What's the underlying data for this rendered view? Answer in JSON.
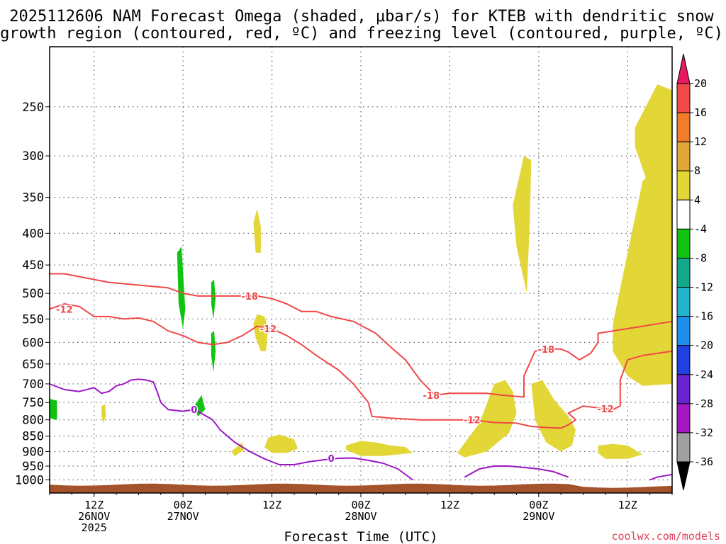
{
  "title": {
    "line1": "2025112606 NAM Forecast Omega (shaded, μbar/s) for KTEB with dendritic snow",
    "line2": "growth region (contoured, red, ºC) and freezing level (contoured, purple, ºC)"
  },
  "credit": "coolwx.com/models",
  "colors": {
    "positive_omega": "#e3d637",
    "negative_omega": "#12c412",
    "dendritic_contour": "#f04848",
    "freezing_contour": "#9a18c4",
    "terrain": "#a5522b",
    "grid": "#666666"
  },
  "chart_data": {
    "type": "heatmap",
    "title": "2025112606 NAM Forecast Omega (shaded, μbar/s) for KTEB with dendritic snow growth region (contoured, red, ºC) and freezing level (contoured, purple, ºC)",
    "xlabel": "Forecast Time (UTC)",
    "ylabel": "",
    "x_range_hours": [
      0,
      84
    ],
    "y_axis": {
      "scale": "log-pressure",
      "ticks": [
        250,
        300,
        350,
        400,
        450,
        500,
        550,
        600,
        650,
        700,
        750,
        800,
        850,
        900,
        950,
        1000
      ],
      "range": [
        1050,
        200
      ]
    },
    "x_ticks": [
      {
        "hour": 6,
        "l1": "12Z",
        "l2": "26NOV",
        "l3": "2025"
      },
      {
        "hour": 18,
        "l1": "00Z",
        "l2": "27NOV",
        "l3": ""
      },
      {
        "hour": 30,
        "l1": "12Z",
        "l2": "",
        "l3": ""
      },
      {
        "hour": 42,
        "l1": "00Z",
        "l2": "28NOV",
        "l3": ""
      },
      {
        "hour": 54,
        "l1": "12Z",
        "l2": "",
        "l3": ""
      },
      {
        "hour": 66,
        "l1": "00Z",
        "l2": "29NOV",
        "l3": ""
      },
      {
        "hour": 78,
        "l1": "12Z",
        "l2": "",
        "l3": ""
      }
    ],
    "grid": true,
    "colorbar": {
      "ticks": [
        "20",
        "16",
        "12",
        "8",
        "4",
        "-4",
        "-8",
        "-12",
        "-16",
        "-20",
        "-24",
        "-28",
        "-32",
        "-36"
      ],
      "colors": [
        "#e8195f",
        "#f24a4a",
        "#f07c2c",
        "#e3a63a",
        "#e3d637",
        "#ffffff",
        "#12c412",
        "#12a88a",
        "#22b4cc",
        "#1e8ee8",
        "#2040e0",
        "#6a22d0",
        "#a418c4",
        "#a0a0a0",
        "#000000"
      ]
    },
    "shaded_regions": [
      {
        "sign": "positive",
        "points": [
          [
            79,
            270
          ],
          [
            82,
            230
          ],
          [
            84,
            235
          ],
          [
            84,
            345
          ],
          [
            82,
            345
          ],
          [
            81,
            340
          ],
          [
            79,
            290
          ]
        ]
      },
      {
        "sign": "positive",
        "points": [
          [
            76,
            560
          ],
          [
            78,
            430
          ],
          [
            80,
            330
          ],
          [
            84,
            290
          ],
          [
            84,
            700
          ],
          [
            80,
            705
          ],
          [
            78,
            680
          ],
          [
            76,
            620
          ]
        ]
      },
      {
        "sign": "positive",
        "points": [
          [
            62.5,
            360
          ],
          [
            64,
            300
          ],
          [
            65,
            305
          ],
          [
            64.8,
            380
          ],
          [
            64.4,
            500
          ],
          [
            63,
            420
          ]
        ]
      },
      {
        "sign": "positive",
        "points": [
          [
            55,
            905
          ],
          [
            58,
            810
          ],
          [
            60,
            700
          ],
          [
            61.5,
            690
          ],
          [
            62.5,
            720
          ],
          [
            63,
            780
          ],
          [
            62,
            840
          ],
          [
            59,
            900
          ],
          [
            56,
            920
          ]
        ]
      },
      {
        "sign": "positive",
        "points": [
          [
            65,
            700
          ],
          [
            66.5,
            690
          ],
          [
            68,
            740
          ],
          [
            70,
            790
          ],
          [
            71,
            830
          ],
          [
            70.5,
            880
          ],
          [
            69,
            900
          ],
          [
            67,
            870
          ],
          [
            65.5,
            800
          ]
        ]
      },
      {
        "sign": "positive",
        "points": [
          [
            74,
            880
          ],
          [
            76,
            875
          ],
          [
            78,
            880
          ],
          [
            80,
            910
          ],
          [
            78,
            925
          ],
          [
            75,
            925
          ],
          [
            74,
            905
          ]
        ]
      },
      {
        "sign": "positive",
        "points": [
          [
            40,
            880
          ],
          [
            42,
            865
          ],
          [
            44,
            870
          ],
          [
            46,
            880
          ],
          [
            48,
            885
          ],
          [
            49,
            905
          ],
          [
            45,
            915
          ],
          [
            42,
            915
          ],
          [
            40,
            895
          ]
        ]
      },
      {
        "sign": "positive",
        "points": [
          [
            29.5,
            855
          ],
          [
            31,
            845
          ],
          [
            33,
            860
          ],
          [
            33.5,
            890
          ],
          [
            32,
            905
          ],
          [
            30,
            905
          ],
          [
            29,
            885
          ]
        ]
      },
      {
        "sign": "positive",
        "points": [
          [
            24.5,
            900
          ],
          [
            26,
            870
          ],
          [
            26.2,
            895
          ],
          [
            25,
            915
          ]
        ]
      },
      {
        "sign": "positive",
        "points": [
          [
            27.5,
            560
          ],
          [
            28,
            540
          ],
          [
            29,
            545
          ],
          [
            29.5,
            570
          ],
          [
            29.2,
            620
          ],
          [
            28.5,
            620
          ],
          [
            27.8,
            590
          ]
        ]
      },
      {
        "sign": "positive",
        "points": [
          [
            27.5,
            385
          ],
          [
            28,
            365
          ],
          [
            28.5,
            390
          ],
          [
            28.5,
            430
          ],
          [
            27.8,
            430
          ]
        ]
      },
      {
        "sign": "positive",
        "points": [
          [
            7,
            760
          ],
          [
            7.5,
            755
          ],
          [
            7.6,
            790
          ],
          [
            7.2,
            810
          ],
          [
            7,
            790
          ]
        ]
      },
      {
        "sign": "negative",
        "points": [
          [
            17.2,
            430
          ],
          [
            17.8,
            420
          ],
          [
            18,
            460
          ],
          [
            18.3,
            530
          ],
          [
            18,
            570
          ],
          [
            17.4,
            520
          ]
        ]
      },
      {
        "sign": "negative",
        "points": [
          [
            21.8,
            480
          ],
          [
            22.2,
            475
          ],
          [
            22.4,
            510
          ],
          [
            22.1,
            550
          ],
          [
            21.8,
            520
          ]
        ]
      },
      {
        "sign": "negative",
        "points": [
          [
            21.8,
            580
          ],
          [
            22.2,
            575
          ],
          [
            22.4,
            620
          ],
          [
            22.1,
            670
          ],
          [
            21.8,
            630
          ]
        ]
      },
      {
        "sign": "negative",
        "points": [
          [
            19.5,
            760
          ],
          [
            20.5,
            730
          ],
          [
            21,
            770
          ],
          [
            20,
            790
          ]
        ]
      },
      {
        "sign": "negative",
        "points": [
          [
            0,
            740
          ],
          [
            1,
            745
          ],
          [
            1,
            800
          ],
          [
            0,
            795
          ]
        ]
      }
    ],
    "contours": [
      {
        "kind": "dendritic",
        "value": "-12",
        "label_at": [
          2,
          530
        ],
        "points": [
          [
            0,
            530
          ],
          [
            2,
            520
          ],
          [
            4,
            525
          ],
          [
            6,
            545
          ],
          [
            8,
            545
          ],
          [
            10,
            550
          ],
          [
            12,
            548
          ],
          [
            14,
            555
          ],
          [
            16,
            575
          ],
          [
            18,
            585
          ],
          [
            20,
            600
          ],
          [
            22,
            605
          ],
          [
            24,
            600
          ],
          [
            26,
            585
          ],
          [
            28,
            565
          ],
          [
            30,
            570
          ],
          [
            32,
            585
          ],
          [
            34,
            605
          ],
          [
            36,
            630
          ],
          [
            39,
            665
          ],
          [
            41,
            700
          ],
          [
            43,
            750
          ],
          [
            43.5,
            790
          ],
          [
            46,
            795
          ],
          [
            50,
            800
          ],
          [
            54,
            800
          ],
          [
            57,
            800
          ],
          [
            60,
            808
          ],
          [
            63,
            810
          ],
          [
            65,
            820
          ],
          [
            67,
            823
          ],
          [
            69,
            825
          ],
          [
            70,
            815
          ],
          [
            71,
            800
          ],
          [
            70,
            780
          ],
          [
            72,
            760
          ],
          [
            74,
            765
          ],
          [
            76,
            770
          ],
          [
            77,
            760
          ],
          [
            77,
            690
          ],
          [
            78,
            640
          ],
          [
            80,
            630
          ],
          [
            82,
            625
          ],
          [
            84,
            620
          ]
        ]
      },
      {
        "kind": "dendritic",
        "value": "-18",
        "label_at": [
          27,
          505
        ],
        "points": [
          [
            0,
            465
          ],
          [
            2,
            465
          ],
          [
            4,
            470
          ],
          [
            6,
            475
          ],
          [
            8,
            480
          ],
          [
            12,
            485
          ],
          [
            16,
            490
          ],
          [
            18,
            500
          ],
          [
            20,
            505
          ],
          [
            24,
            505
          ],
          [
            28,
            505
          ],
          [
            30,
            510
          ],
          [
            32,
            520
          ],
          [
            34,
            535
          ],
          [
            36,
            535
          ],
          [
            38,
            545
          ],
          [
            41,
            555
          ],
          [
            44,
            580
          ],
          [
            46,
            610
          ],
          [
            48,
            640
          ],
          [
            50,
            690
          ],
          [
            52,
            730
          ],
          [
            54,
            725
          ],
          [
            57,
            725
          ],
          [
            59,
            725
          ],
          [
            61,
            730
          ],
          [
            64,
            735
          ],
          [
            64,
            680
          ],
          [
            65.5,
            620
          ],
          [
            67,
            615
          ],
          [
            69,
            615
          ],
          [
            70,
            622
          ],
          [
            71.5,
            640
          ],
          [
            73,
            625
          ],
          [
            74,
            600
          ],
          [
            74,
            580
          ],
          [
            76,
            575
          ],
          [
            78,
            570
          ],
          [
            80,
            565
          ],
          [
            82,
            560
          ],
          [
            84,
            555
          ]
        ]
      },
      {
        "kind": "freezing",
        "value": "0",
        "label_at": [
          19.5,
          770
        ],
        "points": [
          [
            0,
            700
          ],
          [
            2,
            715
          ],
          [
            4,
            720
          ],
          [
            6,
            710
          ],
          [
            7,
            725
          ],
          [
            8,
            720
          ],
          [
            9,
            705
          ],
          [
            10,
            700
          ],
          [
            11,
            690
          ],
          [
            12,
            688
          ],
          [
            13,
            690
          ],
          [
            14,
            695
          ],
          [
            14.5,
            720
          ],
          [
            15,
            750
          ],
          [
            16,
            770
          ],
          [
            18,
            775
          ],
          [
            19.5,
            770
          ],
          [
            20,
            775
          ],
          [
            22,
            800
          ],
          [
            23,
            830
          ],
          [
            25,
            870
          ],
          [
            27,
            900
          ],
          [
            29,
            925
          ],
          [
            31,
            945
          ],
          [
            33,
            945
          ],
          [
            35,
            935
          ],
          [
            37,
            928
          ],
          [
            39,
            923
          ],
          [
            41,
            922
          ],
          [
            43,
            930
          ],
          [
            45,
            940
          ],
          [
            47,
            960
          ],
          [
            49,
            1000
          ]
        ]
      },
      {
        "kind": "freezing",
        "value": "0",
        "label_at": null,
        "points": [
          [
            56,
            990
          ],
          [
            58,
            960
          ],
          [
            60,
            950
          ],
          [
            62,
            950
          ],
          [
            64,
            955
          ],
          [
            66,
            960
          ],
          [
            68,
            970
          ],
          [
            70,
            990
          ]
        ]
      },
      {
        "kind": "freezing",
        "value": "0",
        "label_at": null,
        "points": [
          [
            81,
            1000
          ],
          [
            82,
            990
          ],
          [
            84,
            980
          ]
        ]
      }
    ]
  },
  "axis_label": "Forecast Time (UTC)"
}
